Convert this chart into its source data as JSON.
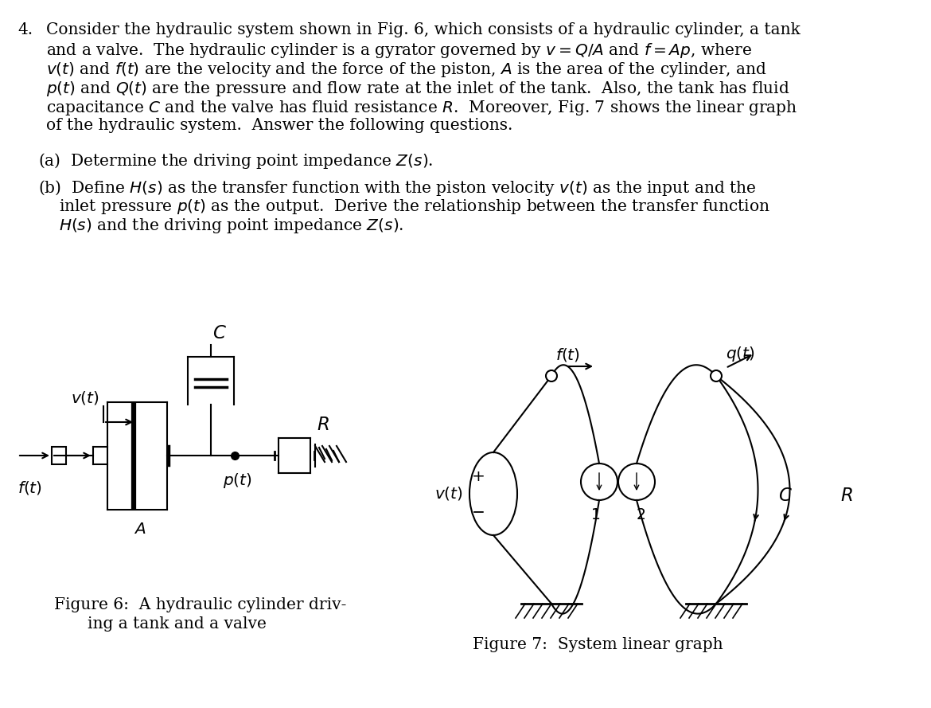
{
  "bg_color": "#ffffff",
  "text_color": "#000000",
  "fig6_caption_line1": "Figure 6:  A hydraulic cylinder driv-",
  "fig6_caption_line2": "ing a tank and a valve",
  "fig7_caption": "Figure 7:  System linear graph"
}
